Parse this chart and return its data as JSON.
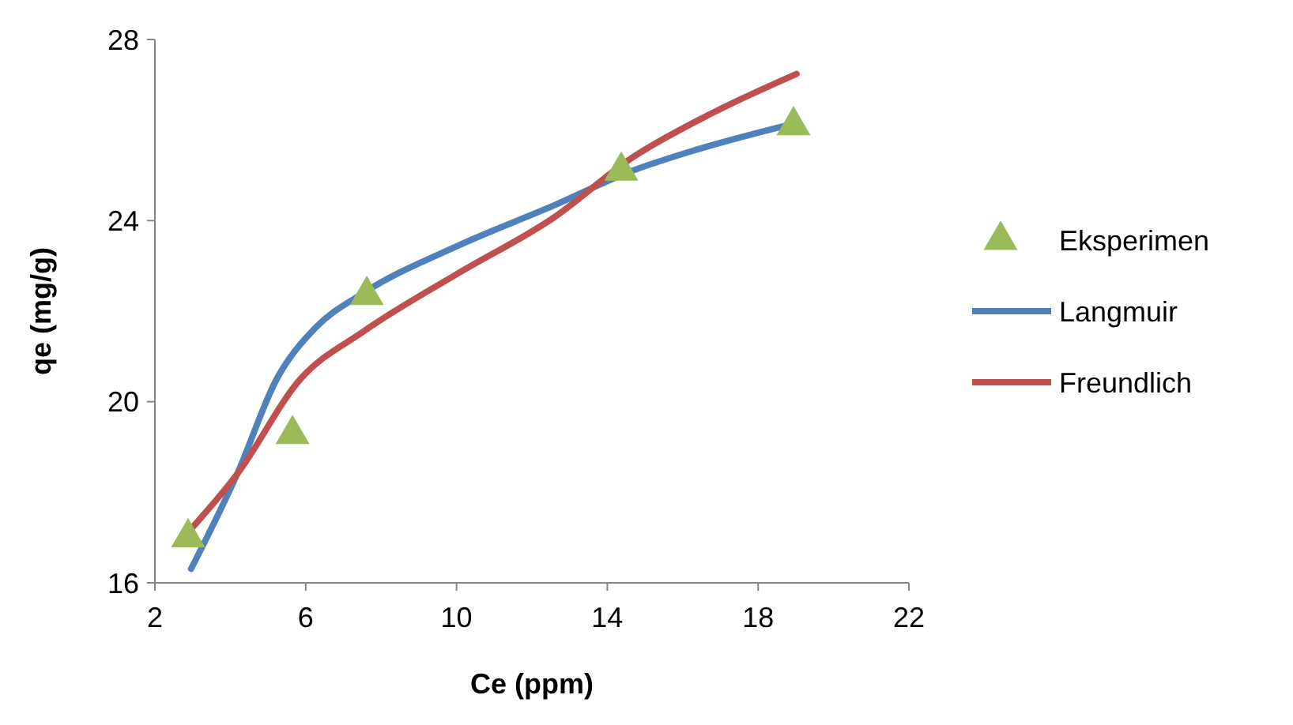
{
  "chart_data": {
    "type": "scatter",
    "xlabel": "Ce (ppm)",
    "ylabel": "qe (mg/g)",
    "xlim": [
      2,
      22
    ],
    "xticks": [
      2,
      6,
      10,
      14,
      18,
      22
    ],
    "ylim": [
      16,
      28
    ],
    "yticks": [
      16,
      20,
      24,
      28
    ],
    "grid": false,
    "legend": "right",
    "series": [
      {
        "name": "Eksperimen",
        "marker": "triangle",
        "color": "#9bbb59",
        "x": [
          2.88,
          5.65,
          7.62,
          14.37,
          18.94
        ],
        "values": [
          17.0,
          19.28,
          22.35,
          25.1,
          26.1
        ]
      },
      {
        "name": "Langmuir",
        "type": "line",
        "marker": "none",
        "color": "#4f81bd",
        "x": [
          2.96,
          4.18,
          5.23,
          6.28,
          7.53,
          10.05,
          12.57,
          14.66,
          16.34,
          18.98
        ],
        "values": [
          16.31,
          18.4,
          20.5,
          21.65,
          22.4,
          23.45,
          24.33,
          25.1,
          25.56,
          26.15
        ]
      },
      {
        "name": "Freundlich",
        "type": "line",
        "marker": "none",
        "color": "#c0504d",
        "x": [
          2.96,
          4.18,
          5.86,
          7.53,
          10.05,
          12.57,
          14.66,
          16.77,
          19.02
        ],
        "values": [
          17.19,
          18.4,
          20.5,
          21.55,
          22.84,
          24.06,
          25.39,
          26.37,
          27.24
        ]
      }
    ]
  }
}
